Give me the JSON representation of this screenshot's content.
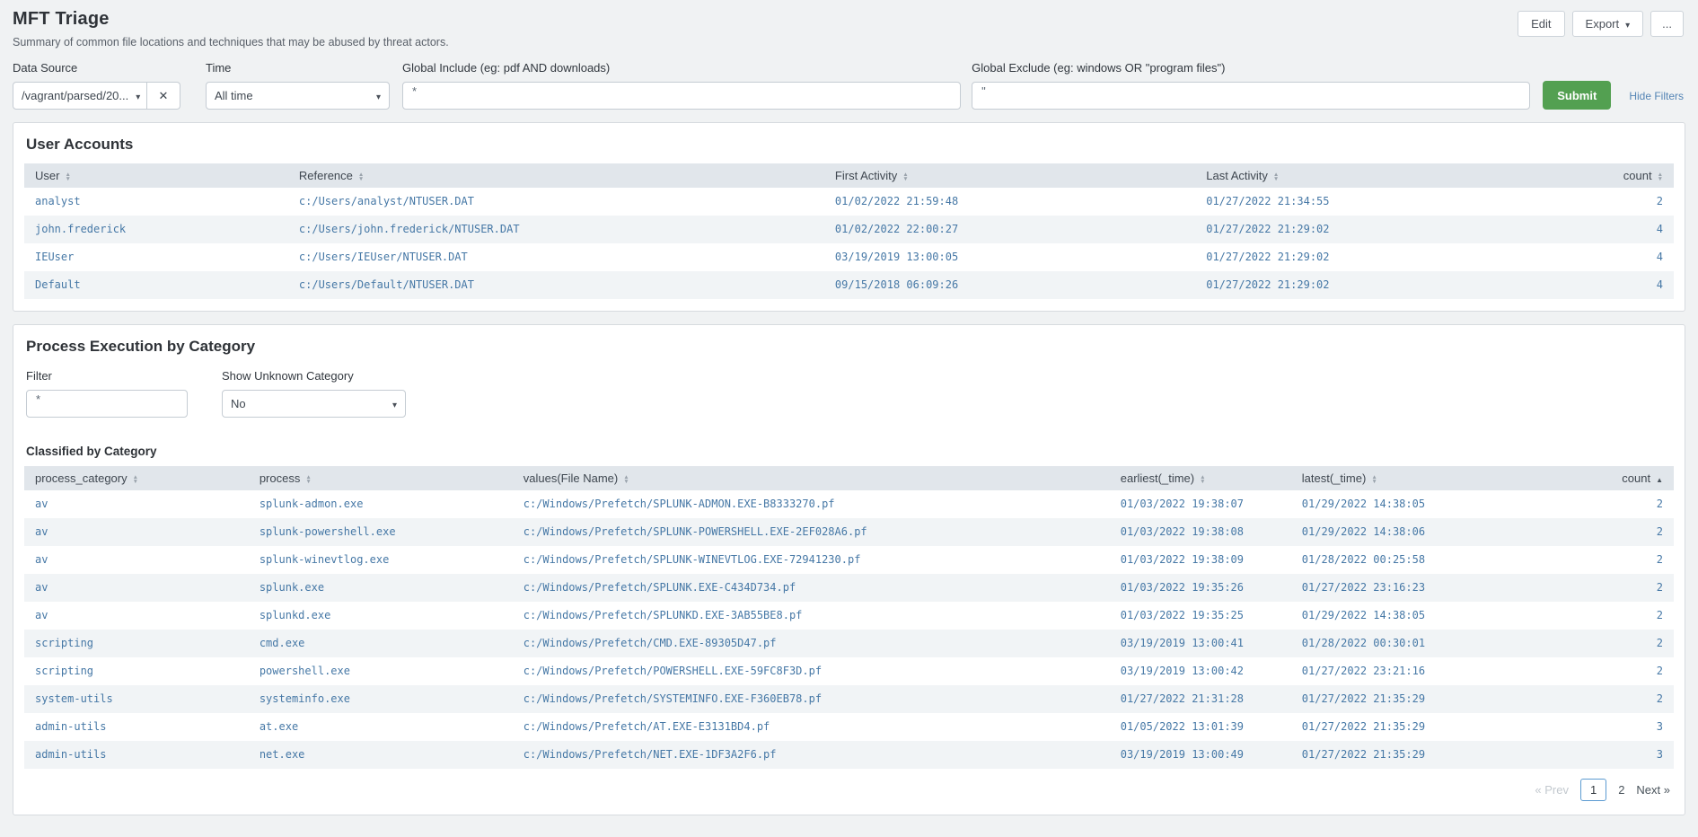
{
  "page": {
    "title": "MFT Triage",
    "subtitle": "Summary of common file locations and techniques that may be abused by threat actors.",
    "actions": {
      "edit": "Edit",
      "export": "Export",
      "more": "..."
    }
  },
  "filters": {
    "data_source": {
      "label": "Data Source",
      "value": "/vagrant/parsed/20..."
    },
    "time": {
      "label": "Time",
      "value": "All time"
    },
    "global_include": {
      "label": "Global Include (eg: pdf AND downloads)",
      "value": "*"
    },
    "global_exclude": {
      "label": "Global Exclude (eg: windows OR \"program files\")",
      "value": "\""
    },
    "submit_label": "Submit",
    "hide_filters_label": "Hide Filters"
  },
  "user_accounts": {
    "title": "User Accounts",
    "columns": [
      "User",
      "Reference",
      "First Activity",
      "Last Activity",
      "count"
    ],
    "rows": [
      [
        "analyst",
        "c:/Users/analyst/NTUSER.DAT",
        "01/02/2022 21:59:48",
        "01/27/2022 21:34:55",
        "2"
      ],
      [
        "john.frederick",
        "c:/Users/john.frederick/NTUSER.DAT",
        "01/02/2022 22:00:27",
        "01/27/2022 21:29:02",
        "4"
      ],
      [
        "IEUser",
        "c:/Users/IEUser/NTUSER.DAT",
        "03/19/2019 13:00:05",
        "01/27/2022 21:29:02",
        "4"
      ],
      [
        "Default",
        "c:/Users/Default/NTUSER.DAT",
        "09/15/2018 06:09:26",
        "01/27/2022 21:29:02",
        "4"
      ]
    ]
  },
  "process_execution": {
    "title": "Process Execution by Category",
    "filter": {
      "label": "Filter",
      "value": "*"
    },
    "show_unknown": {
      "label": "Show Unknown Category",
      "value": "No"
    },
    "table_title": "Classified by Category",
    "columns": [
      "process_category",
      "process",
      "values(File Name)",
      "earliest(_time)",
      "latest(_time)",
      "count"
    ],
    "sorted_column": "count",
    "sort_direction": "asc",
    "rows": [
      [
        "av",
        "splunk-admon.exe",
        "c:/Windows/Prefetch/SPLUNK-ADMON.EXE-B8333270.pf",
        "01/03/2022 19:38:07",
        "01/29/2022 14:38:05",
        "2"
      ],
      [
        "av",
        "splunk-powershell.exe",
        "c:/Windows/Prefetch/SPLUNK-POWERSHELL.EXE-2EF028A6.pf",
        "01/03/2022 19:38:08",
        "01/29/2022 14:38:06",
        "2"
      ],
      [
        "av",
        "splunk-winevtlog.exe",
        "c:/Windows/Prefetch/SPLUNK-WINEVTLOG.EXE-72941230.pf",
        "01/03/2022 19:38:09",
        "01/28/2022 00:25:58",
        "2"
      ],
      [
        "av",
        "splunk.exe",
        "c:/Windows/Prefetch/SPLUNK.EXE-C434D734.pf",
        "01/03/2022 19:35:26",
        "01/27/2022 23:16:23",
        "2"
      ],
      [
        "av",
        "splunkd.exe",
        "c:/Windows/Prefetch/SPLUNKD.EXE-3AB55BE8.pf",
        "01/03/2022 19:35:25",
        "01/29/2022 14:38:05",
        "2"
      ],
      [
        "scripting",
        "cmd.exe",
        "c:/Windows/Prefetch/CMD.EXE-89305D47.pf",
        "03/19/2019 13:00:41",
        "01/28/2022 00:30:01",
        "2"
      ],
      [
        "scripting",
        "powershell.exe",
        "c:/Windows/Prefetch/POWERSHELL.EXE-59FC8F3D.pf",
        "03/19/2019 13:00:42",
        "01/27/2022 23:21:16",
        "2"
      ],
      [
        "system-utils",
        "systeminfo.exe",
        "c:/Windows/Prefetch/SYSTEMINFO.EXE-F360EB78.pf",
        "01/27/2022 21:31:28",
        "01/27/2022 21:35:29",
        "2"
      ],
      [
        "admin-utils",
        "at.exe",
        "c:/Windows/Prefetch/AT.EXE-E3131BD4.pf",
        "01/05/2022 13:01:39",
        "01/27/2022 21:35:29",
        "3"
      ],
      [
        "admin-utils",
        "net.exe",
        "c:/Windows/Prefetch/NET.EXE-1DF3A2F6.pf",
        "03/19/2019 13:00:49",
        "01/27/2022 21:35:29",
        "3"
      ]
    ],
    "pagination": {
      "prev": "« Prev",
      "pages": [
        "1",
        "2"
      ],
      "current": "1",
      "next": "Next »"
    }
  },
  "colors": {
    "accent_green": "#53a051",
    "link_blue": "#5585b5",
    "cell_text_blue": "#4678a6",
    "table_header_bg": "#e1e6eb",
    "page_bg": "#f0f2f3"
  }
}
